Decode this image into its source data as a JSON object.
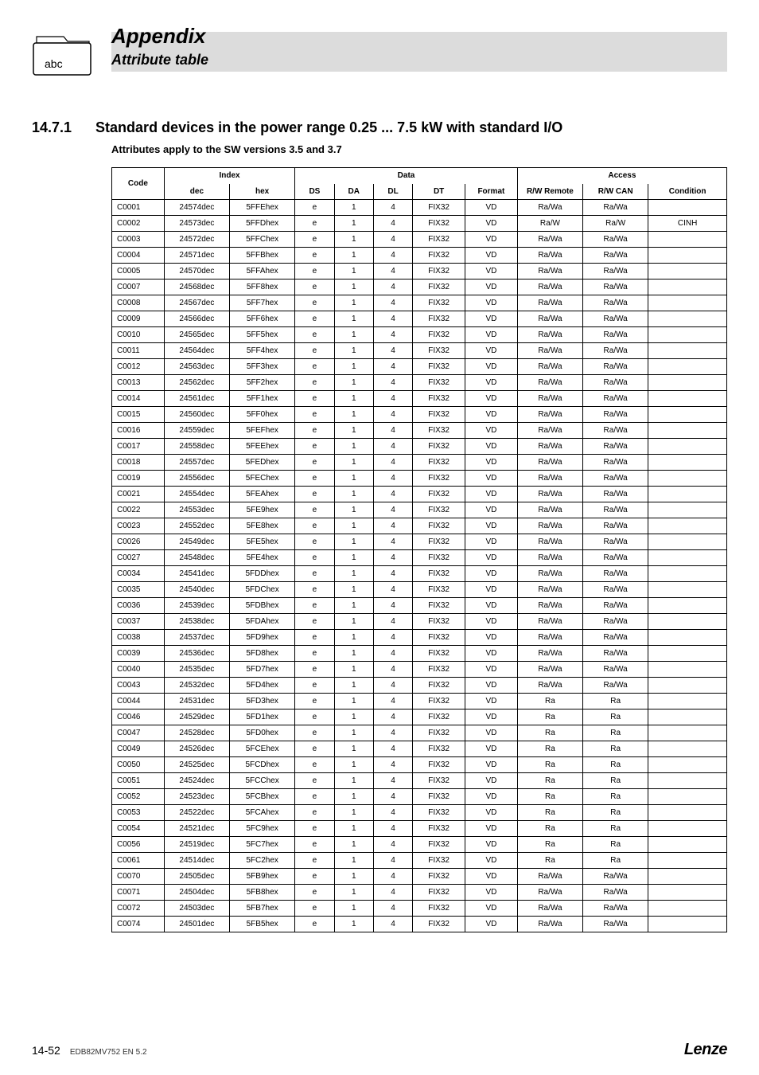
{
  "header": {
    "title": "Appendix",
    "subtitle": "Attribute table",
    "folder_label": "abc"
  },
  "section": {
    "number": "14.7.1",
    "title": "Standard devices in the power range 0.25 ... 7.5 kW with standard I/O",
    "subtitle": "Attributes apply to the SW versions 3.5 and 3.7"
  },
  "table": {
    "group_headers": [
      "Code",
      "Index",
      "Data",
      "Access"
    ],
    "sub_headers": [
      "dec",
      "hex",
      "DS",
      "DA",
      "DL",
      "DT",
      "Format",
      "R/W Remote",
      "R/W CAN",
      "Condition"
    ],
    "rows": [
      [
        "C0001",
        "24574dec",
        "5FFEhex",
        "e",
        "1",
        "4",
        "FIX32",
        "VD",
        "Ra/Wa",
        "Ra/Wa",
        ""
      ],
      [
        "C0002",
        "24573dec",
        "5FFDhex",
        "e",
        "1",
        "4",
        "FIX32",
        "VD",
        "Ra/W",
        "Ra/W",
        "CINH"
      ],
      [
        "C0003",
        "24572dec",
        "5FFChex",
        "e",
        "1",
        "4",
        "FIX32",
        "VD",
        "Ra/Wa",
        "Ra/Wa",
        ""
      ],
      [
        "C0004",
        "24571dec",
        "5FFBhex",
        "e",
        "1",
        "4",
        "FIX32",
        "VD",
        "Ra/Wa",
        "Ra/Wa",
        ""
      ],
      [
        "C0005",
        "24570dec",
        "5FFAhex",
        "e",
        "1",
        "4",
        "FIX32",
        "VD",
        "Ra/Wa",
        "Ra/Wa",
        ""
      ],
      [
        "C0007",
        "24568dec",
        "5FF8hex",
        "e",
        "1",
        "4",
        "FIX32",
        "VD",
        "Ra/Wa",
        "Ra/Wa",
        ""
      ],
      [
        "C0008",
        "24567dec",
        "5FF7hex",
        "e",
        "1",
        "4",
        "FIX32",
        "VD",
        "Ra/Wa",
        "Ra/Wa",
        ""
      ],
      [
        "C0009",
        "24566dec",
        "5FF6hex",
        "e",
        "1",
        "4",
        "FIX32",
        "VD",
        "Ra/Wa",
        "Ra/Wa",
        ""
      ],
      [
        "C0010",
        "24565dec",
        "5FF5hex",
        "e",
        "1",
        "4",
        "FIX32",
        "VD",
        "Ra/Wa",
        "Ra/Wa",
        ""
      ],
      [
        "C0011",
        "24564dec",
        "5FF4hex",
        "e",
        "1",
        "4",
        "FIX32",
        "VD",
        "Ra/Wa",
        "Ra/Wa",
        ""
      ],
      [
        "C0012",
        "24563dec",
        "5FF3hex",
        "e",
        "1",
        "4",
        "FIX32",
        "VD",
        "Ra/Wa",
        "Ra/Wa",
        ""
      ],
      [
        "C0013",
        "24562dec",
        "5FF2hex",
        "e",
        "1",
        "4",
        "FIX32",
        "VD",
        "Ra/Wa",
        "Ra/Wa",
        ""
      ],
      [
        "C0014",
        "24561dec",
        "5FF1hex",
        "e",
        "1",
        "4",
        "FIX32",
        "VD",
        "Ra/Wa",
        "Ra/Wa",
        ""
      ],
      [
        "C0015",
        "24560dec",
        "5FF0hex",
        "e",
        "1",
        "4",
        "FIX32",
        "VD",
        "Ra/Wa",
        "Ra/Wa",
        ""
      ],
      [
        "C0016",
        "24559dec",
        "5FEFhex",
        "e",
        "1",
        "4",
        "FIX32",
        "VD",
        "Ra/Wa",
        "Ra/Wa",
        ""
      ],
      [
        "C0017",
        "24558dec",
        "5FEEhex",
        "e",
        "1",
        "4",
        "FIX32",
        "VD",
        "Ra/Wa",
        "Ra/Wa",
        ""
      ],
      [
        "C0018",
        "24557dec",
        "5FEDhex",
        "e",
        "1",
        "4",
        "FIX32",
        "VD",
        "Ra/Wa",
        "Ra/Wa",
        ""
      ],
      [
        "C0019",
        "24556dec",
        "5FEChex",
        "e",
        "1",
        "4",
        "FIX32",
        "VD",
        "Ra/Wa",
        "Ra/Wa",
        ""
      ],
      [
        "C0021",
        "24554dec",
        "5FEAhex",
        "e",
        "1",
        "4",
        "FIX32",
        "VD",
        "Ra/Wa",
        "Ra/Wa",
        ""
      ],
      [
        "C0022",
        "24553dec",
        "5FE9hex",
        "e",
        "1",
        "4",
        "FIX32",
        "VD",
        "Ra/Wa",
        "Ra/Wa",
        ""
      ],
      [
        "C0023",
        "24552dec",
        "5FE8hex",
        "e",
        "1",
        "4",
        "FIX32",
        "VD",
        "Ra/Wa",
        "Ra/Wa",
        ""
      ],
      [
        "C0026",
        "24549dec",
        "5FE5hex",
        "e",
        "1",
        "4",
        "FIX32",
        "VD",
        "Ra/Wa",
        "Ra/Wa",
        ""
      ],
      [
        "C0027",
        "24548dec",
        "5FE4hex",
        "e",
        "1",
        "4",
        "FIX32",
        "VD",
        "Ra/Wa",
        "Ra/Wa",
        ""
      ],
      [
        "C0034",
        "24541dec",
        "5FDDhex",
        "e",
        "1",
        "4",
        "FIX32",
        "VD",
        "Ra/Wa",
        "Ra/Wa",
        ""
      ],
      [
        "C0035",
        "24540dec",
        "5FDChex",
        "e",
        "1",
        "4",
        "FIX32",
        "VD",
        "Ra/Wa",
        "Ra/Wa",
        ""
      ],
      [
        "C0036",
        "24539dec",
        "5FDBhex",
        "e",
        "1",
        "4",
        "FIX32",
        "VD",
        "Ra/Wa",
        "Ra/Wa",
        ""
      ],
      [
        "C0037",
        "24538dec",
        "5FDAhex",
        "e",
        "1",
        "4",
        "FIX32",
        "VD",
        "Ra/Wa",
        "Ra/Wa",
        ""
      ],
      [
        "C0038",
        "24537dec",
        "5FD9hex",
        "e",
        "1",
        "4",
        "FIX32",
        "VD",
        "Ra/Wa",
        "Ra/Wa",
        ""
      ],
      [
        "C0039",
        "24536dec",
        "5FD8hex",
        "e",
        "1",
        "4",
        "FIX32",
        "VD",
        "Ra/Wa",
        "Ra/Wa",
        ""
      ],
      [
        "C0040",
        "24535dec",
        "5FD7hex",
        "e",
        "1",
        "4",
        "FIX32",
        "VD",
        "Ra/Wa",
        "Ra/Wa",
        ""
      ],
      [
        "C0043",
        "24532dec",
        "5FD4hex",
        "e",
        "1",
        "4",
        "FIX32",
        "VD",
        "Ra/Wa",
        "Ra/Wa",
        ""
      ],
      [
        "C0044",
        "24531dec",
        "5FD3hex",
        "e",
        "1",
        "4",
        "FIX32",
        "VD",
        "Ra",
        "Ra",
        ""
      ],
      [
        "C0046",
        "24529dec",
        "5FD1hex",
        "e",
        "1",
        "4",
        "FIX32",
        "VD",
        "Ra",
        "Ra",
        ""
      ],
      [
        "C0047",
        "24528dec",
        "5FD0hex",
        "e",
        "1",
        "4",
        "FIX32",
        "VD",
        "Ra",
        "Ra",
        ""
      ],
      [
        "C0049",
        "24526dec",
        "5FCEhex",
        "e",
        "1",
        "4",
        "FIX32",
        "VD",
        "Ra",
        "Ra",
        ""
      ],
      [
        "C0050",
        "24525dec",
        "5FCDhex",
        "e",
        "1",
        "4",
        "FIX32",
        "VD",
        "Ra",
        "Ra",
        ""
      ],
      [
        "C0051",
        "24524dec",
        "5FCChex",
        "e",
        "1",
        "4",
        "FIX32",
        "VD",
        "Ra",
        "Ra",
        ""
      ],
      [
        "C0052",
        "24523dec",
        "5FCBhex",
        "e",
        "1",
        "4",
        "FIX32",
        "VD",
        "Ra",
        "Ra",
        ""
      ],
      [
        "C0053",
        "24522dec",
        "5FCAhex",
        "e",
        "1",
        "4",
        "FIX32",
        "VD",
        "Ra",
        "Ra",
        ""
      ],
      [
        "C0054",
        "24521dec",
        "5FC9hex",
        "e",
        "1",
        "4",
        "FIX32",
        "VD",
        "Ra",
        "Ra",
        ""
      ],
      [
        "C0056",
        "24519dec",
        "5FC7hex",
        "e",
        "1",
        "4",
        "FIX32",
        "VD",
        "Ra",
        "Ra",
        ""
      ],
      [
        "C0061",
        "24514dec",
        "5FC2hex",
        "e",
        "1",
        "4",
        "FIX32",
        "VD",
        "Ra",
        "Ra",
        ""
      ],
      [
        "C0070",
        "24505dec",
        "5FB9hex",
        "e",
        "1",
        "4",
        "FIX32",
        "VD",
        "Ra/Wa",
        "Ra/Wa",
        ""
      ],
      [
        "C0071",
        "24504dec",
        "5FB8hex",
        "e",
        "1",
        "4",
        "FIX32",
        "VD",
        "Ra/Wa",
        "Ra/Wa",
        ""
      ],
      [
        "C0072",
        "24503dec",
        "5FB7hex",
        "e",
        "1",
        "4",
        "FIX32",
        "VD",
        "Ra/Wa",
        "Ra/Wa",
        ""
      ],
      [
        "C0074",
        "24501dec",
        "5FB5hex",
        "e",
        "1",
        "4",
        "FIX32",
        "VD",
        "Ra/Wa",
        "Ra/Wa",
        ""
      ]
    ]
  },
  "footer": {
    "page": "14-52",
    "doc_id": "EDB82MV752 EN 5.2",
    "brand": "Lenze"
  }
}
